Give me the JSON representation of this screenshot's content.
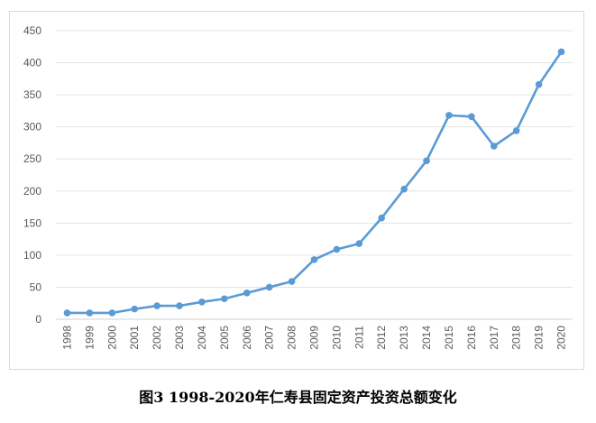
{
  "caption": "图3 1998-2020年仁寿县固定资产投资总额变化",
  "chart_data": {
    "type": "line",
    "title": "",
    "xlabel": "",
    "ylabel": "",
    "ylim": [
      0,
      450
    ],
    "yticks": [
      0,
      50,
      100,
      150,
      200,
      250,
      300,
      350,
      400,
      450
    ],
    "grid": true,
    "legend": "none",
    "categories": [
      "1998",
      "1999",
      "2000",
      "2001",
      "2002",
      "2003",
      "2004",
      "2005",
      "2006",
      "2007",
      "2008",
      "2009",
      "2010",
      "2011",
      "2012",
      "2013",
      "2014",
      "2015",
      "2016",
      "2017",
      "2018",
      "2019",
      "2020"
    ],
    "series": [
      {
        "color": "#5b9bd5",
        "values": [
          10,
          10,
          10,
          16,
          21,
          21,
          27,
          32,
          41,
          50,
          59,
          93,
          109,
          118,
          158,
          203,
          247,
          318,
          316,
          270,
          294,
          366,
          417
        ]
      }
    ]
  }
}
